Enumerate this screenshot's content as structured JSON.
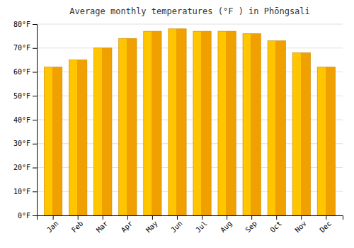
{
  "chart_data": {
    "type": "bar",
    "title": "Average monthly temperatures (°F ) in Phōngsali",
    "categories": [
      "Jan",
      "Feb",
      "Mar",
      "Apr",
      "May",
      "Jun",
      "Jul",
      "Aug",
      "Sep",
      "Oct",
      "Nov",
      "Dec"
    ],
    "values": [
      62,
      65,
      70,
      74,
      77,
      78,
      77,
      77,
      76,
      73,
      68,
      62
    ],
    "color": "#F0A000",
    "ylim": [
      0,
      80
    ],
    "yticks": [
      {
        "value": 0,
        "label": "0°F"
      },
      {
        "value": 10,
        "label": "10°F"
      },
      {
        "value": 20,
        "label": "20°F"
      },
      {
        "value": 30,
        "label": "30°F"
      },
      {
        "value": 40,
        "label": "40°F"
      },
      {
        "value": 50,
        "label": "50°F"
      },
      {
        "value": 60,
        "label": "60°F"
      },
      {
        "value": 70,
        "label": "70°F"
      },
      {
        "value": 80,
        "label": "80°F"
      }
    ],
    "grid": true
  }
}
